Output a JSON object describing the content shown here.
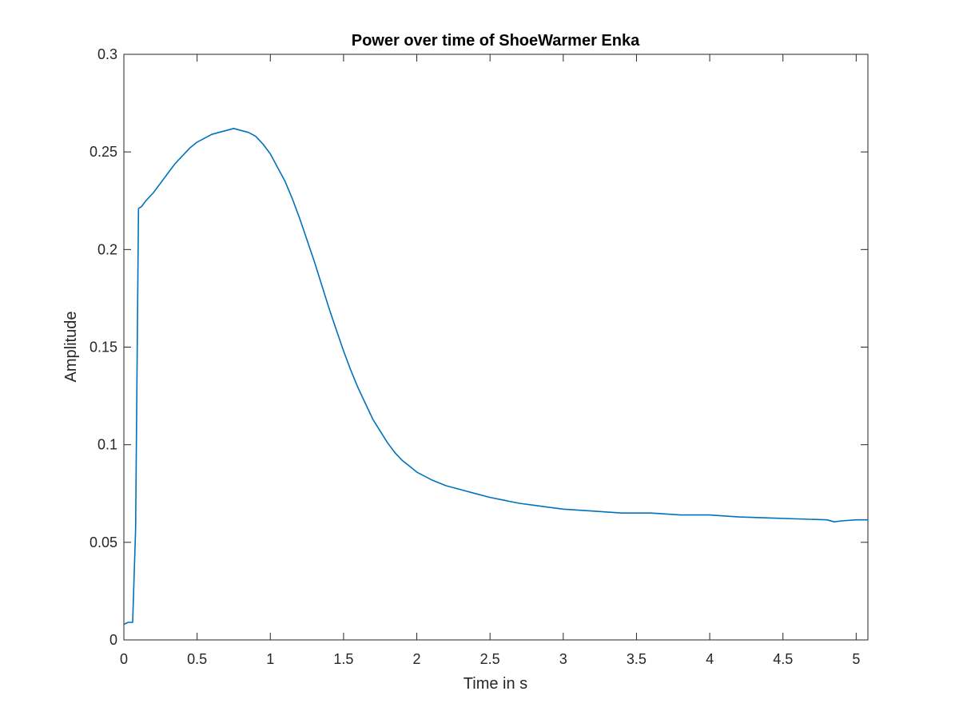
{
  "chart_data": {
    "type": "line",
    "title": "Power over time of ShoeWarmer Enka",
    "xlabel": "Time in s",
    "ylabel": "Amplitude",
    "xlim": [
      0,
      5.08
    ],
    "ylim": [
      0,
      0.3
    ],
    "grid": false,
    "legend": "none",
    "line_color": "#0072BD",
    "x_ticks": [
      0,
      0.5,
      1,
      1.5,
      2,
      2.5,
      3,
      3.5,
      4,
      4.5,
      5
    ],
    "x_tick_labels": [
      "0",
      "0.5",
      "1",
      "1.5",
      "2",
      "2.5",
      "3",
      "3.5",
      "4",
      "4.5",
      "5"
    ],
    "y_ticks": [
      0,
      0.05,
      0.1,
      0.15,
      0.2,
      0.25,
      0.3
    ],
    "y_tick_labels": [
      "0",
      "0.05",
      "0.1",
      "0.15",
      "0.2",
      "0.25",
      "0.3"
    ],
    "series": [
      {
        "name": "Amplitude",
        "x": [
          0,
          0.03,
          0.06,
          0.08,
          0.1,
          0.12,
          0.15,
          0.2,
          0.25,
          0.3,
          0.35,
          0.4,
          0.45,
          0.5,
          0.55,
          0.6,
          0.65,
          0.7,
          0.75,
          0.8,
          0.85,
          0.9,
          0.95,
          1.0,
          1.05,
          1.1,
          1.15,
          1.2,
          1.25,
          1.3,
          1.35,
          1.4,
          1.45,
          1.5,
          1.55,
          1.6,
          1.65,
          1.7,
          1.75,
          1.8,
          1.85,
          1.9,
          1.95,
          2.0,
          2.1,
          2.2,
          2.3,
          2.4,
          2.5,
          2.6,
          2.7,
          2.8,
          2.9,
          3.0,
          3.2,
          3.4,
          3.6,
          3.8,
          4.0,
          4.2,
          4.4,
          4.6,
          4.8,
          4.85,
          4.9,
          5.0,
          5.08
        ],
        "y": [
          0.008,
          0.009,
          0.009,
          0.057,
          0.221,
          0.222,
          0.225,
          0.229,
          0.234,
          0.239,
          0.244,
          0.248,
          0.252,
          0.255,
          0.257,
          0.259,
          0.26,
          0.261,
          0.262,
          0.261,
          0.26,
          0.258,
          0.254,
          0.249,
          0.242,
          0.235,
          0.226,
          0.216,
          0.205,
          0.194,
          0.182,
          0.17,
          0.159,
          0.148,
          0.138,
          0.129,
          0.121,
          0.113,
          0.107,
          0.101,
          0.096,
          0.092,
          0.089,
          0.086,
          0.082,
          0.079,
          0.077,
          0.075,
          0.073,
          0.0715,
          0.07,
          0.069,
          0.068,
          0.067,
          0.066,
          0.065,
          0.065,
          0.064,
          0.064,
          0.063,
          0.0625,
          0.062,
          0.0615,
          0.0605,
          0.061,
          0.0615,
          0.0615
        ]
      }
    ]
  }
}
